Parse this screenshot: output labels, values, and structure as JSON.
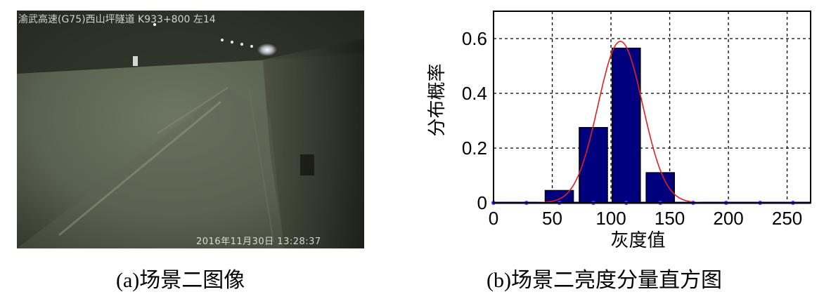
{
  "photo": {
    "overlay_top": "渝武高速(G75)西山坪隧道 K933+800 左14",
    "overlay_bottom": "2016年11月30日 13:28:37"
  },
  "captions": {
    "a": "(a)场景二图像",
    "b": "(b)场景二亮度分量直方图"
  },
  "chart_data": {
    "type": "bar",
    "title": "",
    "xlabel": "灰度值",
    "ylabel": "分布概率",
    "xlim": [
      0,
      270
    ],
    "ylim": [
      0,
      0.7
    ],
    "xticks": [
      0,
      50,
      100,
      150,
      200,
      250
    ],
    "xtick_labels": [
      "0",
      "50",
      "100",
      "150",
      "200",
      "250"
    ],
    "yticks": [
      0,
      0.2,
      0.4,
      0.6
    ],
    "ytick_labels": [
      "0",
      "0.2",
      "0.4",
      "0.6"
    ],
    "grid": true,
    "bar_centers": [
      0,
      28,
      56,
      85,
      113,
      142,
      170,
      198,
      227,
      255
    ],
    "bar_width": 24,
    "values": [
      0,
      0,
      0.045,
      0.275,
      0.565,
      0.11,
      0,
      0,
      0,
      0
    ],
    "fit_curve": {
      "type": "gaussian",
      "mean": 108,
      "sigma": 19,
      "peak": 0.59
    },
    "colors": {
      "bar": "#00007f",
      "curve": "#e02020",
      "marker": "#3333ff"
    }
  }
}
